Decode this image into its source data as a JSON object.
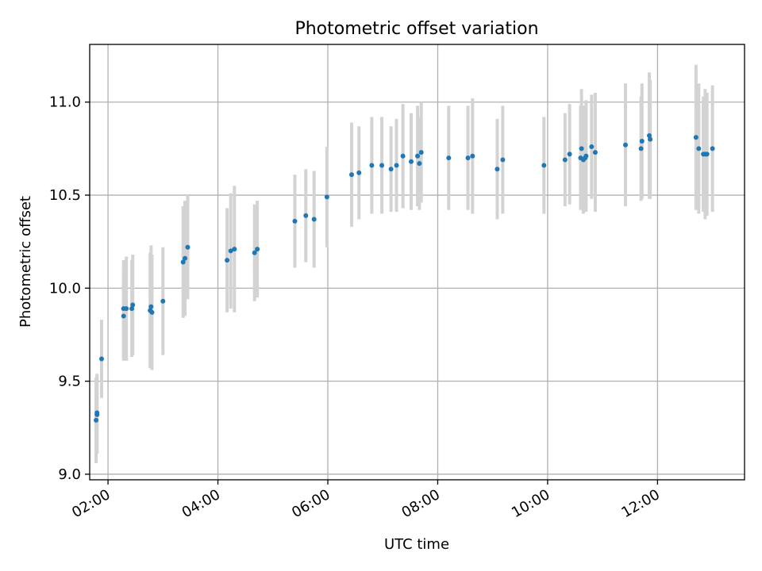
{
  "chart_data": {
    "type": "scatter",
    "title": "Photometric offset variation",
    "xlabel": "UTC time",
    "ylabel": "Photometric offset",
    "x_tick_labels": [
      "02:00",
      "04:00",
      "06:00",
      "08:00",
      "10:00",
      "12:00"
    ],
    "x_tick_hours": [
      2,
      4,
      6,
      8,
      10,
      12
    ],
    "y_ticks": [
      9.0,
      9.5,
      10.0,
      10.5,
      11.0
    ],
    "y_tick_labels": [
      "9.0",
      "9.5",
      "10.0",
      "10.5",
      "11.0"
    ],
    "xlim": [
      "01:40",
      "13:35"
    ],
    "ylim": [
      8.97,
      11.31
    ],
    "grid": true,
    "colors": {
      "points": "#1f77b4",
      "errorbars": "#d3d3d3",
      "grid": "#b0b0b0"
    },
    "series": [
      {
        "x": [
          "01:47",
          "01:48",
          "01:48",
          "01:53",
          "02:17",
          "02:17",
          "02:20",
          "02:26",
          "02:27",
          "02:46",
          "02:47",
          "02:48",
          "03:00",
          "03:22",
          "03:24",
          "03:27",
          "04:10",
          "04:14",
          "04:18",
          "04:40",
          "04:43",
          "05:24",
          "05:36",
          "05:45",
          "05:59",
          "06:26",
          "06:34",
          "06:48",
          "06:59",
          "07:09",
          "07:15",
          "07:22",
          "07:31",
          "07:38",
          "07:40",
          "07:42",
          "08:12",
          "08:33",
          "08:38",
          "09:05",
          "09:11",
          "09:56",
          "10:19",
          "10:24",
          "10:36",
          "10:37",
          "10:39",
          "10:41",
          "10:42",
          "10:48",
          "10:52",
          "11:25",
          "11:42",
          "11:43",
          "11:51",
          "11:52",
          "12:42",
          "12:45",
          "12:50",
          "12:52",
          "12:54",
          "13:00"
        ],
        "y": [
          9.29,
          9.32,
          9.33,
          9.62,
          9.85,
          9.89,
          9.89,
          9.89,
          9.91,
          9.88,
          9.9,
          9.87,
          9.93,
          10.14,
          10.16,
          10.22,
          10.15,
          10.2,
          10.21,
          10.19,
          10.21,
          10.36,
          10.39,
          10.37,
          10.49,
          10.61,
          10.62,
          10.66,
          10.66,
          10.64,
          10.66,
          10.71,
          10.68,
          10.71,
          10.67,
          10.73,
          10.7,
          10.7,
          10.71,
          10.64,
          10.69,
          10.66,
          10.69,
          10.72,
          10.7,
          10.75,
          10.69,
          10.7,
          10.71,
          10.76,
          10.73,
          10.77,
          10.75,
          10.79,
          10.82,
          10.8,
          10.81,
          10.75,
          10.72,
          10.72,
          10.72,
          10.75
        ],
        "yerr": [
          0.23,
          0.21,
          0.21,
          0.21,
          0.24,
          0.26,
          0.28,
          0.26,
          0.27,
          0.31,
          0.33,
          0.31,
          0.29,
          0.3,
          0.31,
          0.28,
          0.28,
          0.31,
          0.34,
          0.26,
          0.26,
          0.25,
          0.25,
          0.26,
          0.27,
          0.28,
          0.25,
          0.26,
          0.26,
          0.23,
          0.25,
          0.28,
          0.26,
          0.27,
          0.25,
          0.27,
          0.28,
          0.28,
          0.31,
          0.27,
          0.29,
          0.26,
          0.25,
          0.27,
          0.28,
          0.32,
          0.29,
          0.28,
          0.3,
          0.28,
          0.32,
          0.33,
          0.28,
          0.31,
          0.34,
          0.32,
          0.39,
          0.35,
          0.31,
          0.35,
          0.33,
          0.34
        ]
      }
    ]
  }
}
